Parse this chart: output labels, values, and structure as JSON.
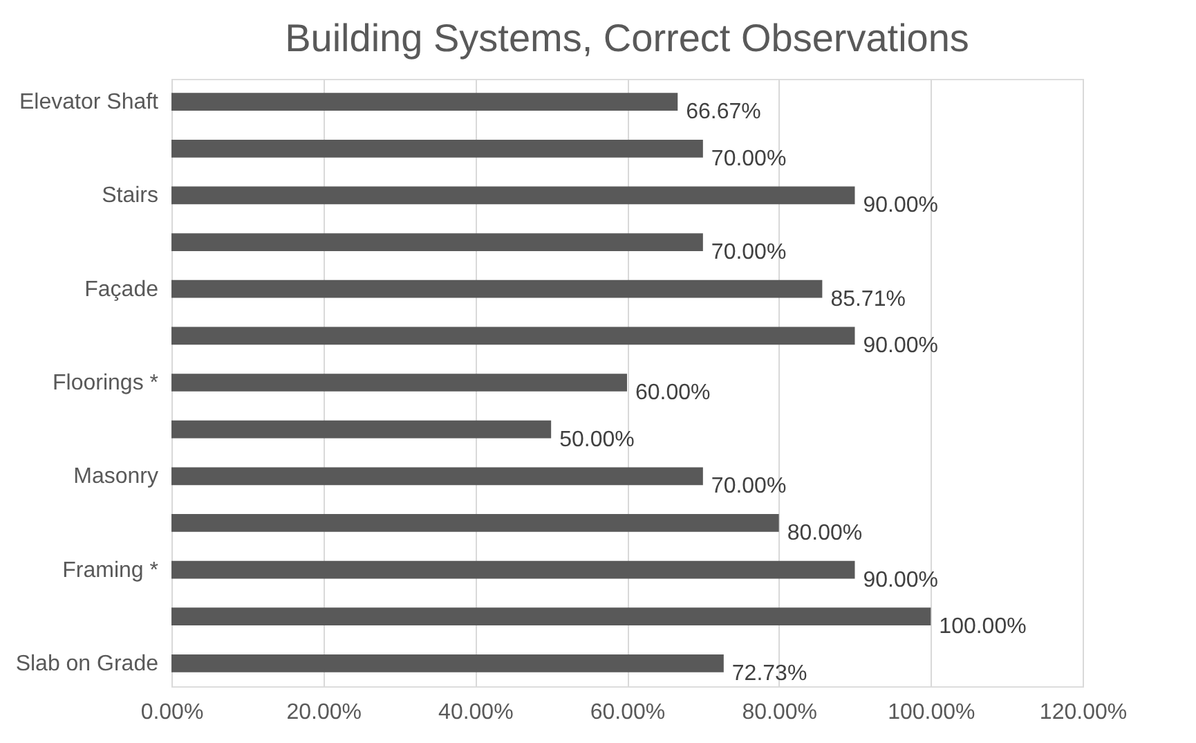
{
  "chart_data": {
    "type": "bar",
    "orientation": "horizontal",
    "title": "Building Systems, Correct Observations",
    "categories": [
      "Elevator Shaft",
      null,
      "Stairs",
      null,
      "Façade",
      null,
      "Floorings *",
      null,
      "Masonry",
      null,
      "Framing *",
      null,
      "Slab on Grade"
    ],
    "values": [
      66.67,
      70,
      90,
      70,
      85.71,
      90,
      60,
      50,
      70,
      80,
      90,
      100,
      72.73
    ],
    "value_labels": [
      "66.67%",
      "70.00%",
      "90.00%",
      "70.00%",
      "85.71%",
      "90.00%",
      "60.00%",
      "50.00%",
      "70.00%",
      "80.00%",
      "90.00%",
      "100.00%",
      "72.73%"
    ],
    "color": "#595959",
    "xlim": [
      0,
      120
    ],
    "xticks": [
      {
        "value": 0,
        "label": "0.00%"
      },
      {
        "value": 20,
        "label": "20.00%"
      },
      {
        "value": 40,
        "label": "40.00%"
      },
      {
        "value": 60,
        "label": "60.00%"
      },
      {
        "value": 80,
        "label": "80.00%"
      },
      {
        "value": 100,
        "label": "100.00%"
      },
      {
        "value": 120,
        "label": "120.00%"
      }
    ],
    "grid": "x"
  }
}
